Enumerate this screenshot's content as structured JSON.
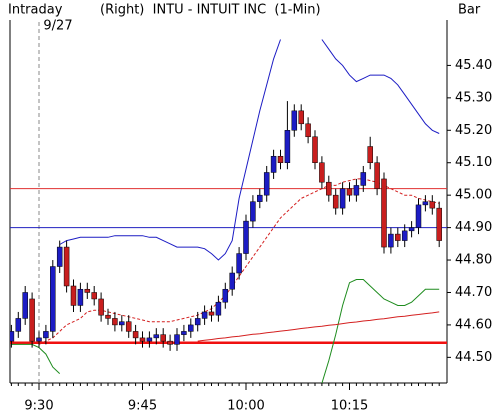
{
  "chart_data": {
    "type": "candlestick",
    "title": "(Right)  INTU - INTUIT INC  (1-Min)",
    "left_label": "Intraday",
    "date_label": "9/27",
    "right_label": "Bar",
    "categories": [
      null,
      null,
      null,
      null,
      "9:30",
      null,
      null,
      null,
      null,
      null,
      null,
      null,
      null,
      null,
      null,
      null,
      null,
      null,
      null,
      "9:45",
      null,
      null,
      null,
      null,
      null,
      null,
      null,
      null,
      null,
      null,
      null,
      null,
      null,
      null,
      "10:00",
      null,
      null,
      null,
      null,
      null,
      null,
      null,
      null,
      null,
      null,
      null,
      null,
      null,
      null,
      "10:15",
      null,
      null,
      null,
      null,
      null,
      null,
      null,
      null,
      null,
      null,
      null,
      null,
      null
    ],
    "open": [
      44.55,
      44.58,
      44.62,
      44.68,
      44.55,
      44.56,
      44.58,
      44.78,
      44.84,
      44.72,
      44.66,
      44.71,
      44.7,
      44.68,
      44.63,
      44.62,
      44.6,
      44.61,
      44.58,
      44.56,
      44.55,
      44.56,
      44.57,
      44.55,
      44.54,
      44.57,
      44.58,
      44.6,
      44.62,
      44.64,
      44.63,
      44.67,
      44.71,
      44.76,
      44.82,
      44.92,
      44.98,
      45.0,
      45.07,
      45.12,
      45.1,
      45.2,
      45.26,
      45.22,
      45.18,
      45.1,
      45.04,
      45.0,
      44.96,
      45.02,
      45.0,
      45.03,
      45.15,
      45.1,
      45.05,
      44.84,
      44.88,
      44.86,
      44.89,
      44.9,
      44.97,
      44.98,
      44.96
    ],
    "high": [
      44.6,
      44.64,
      44.72,
      44.7,
      44.58,
      44.6,
      44.8,
      44.86,
      44.86,
      44.74,
      44.73,
      44.73,
      44.72,
      44.7,
      44.65,
      44.64,
      44.63,
      44.63,
      44.6,
      44.58,
      44.58,
      44.59,
      44.59,
      44.57,
      44.59,
      44.6,
      44.62,
      44.64,
      44.66,
      44.66,
      44.69,
      44.73,
      44.78,
      44.84,
      44.94,
      45.0,
      45.02,
      45.09,
      45.14,
      45.14,
      45.29,
      45.28,
      45.28,
      45.24,
      45.2,
      45.12,
      45.06,
      45.02,
      45.04,
      45.04,
      45.05,
      45.09,
      45.18,
      45.12,
      45.07,
      44.9,
      44.9,
      44.91,
      44.92,
      44.99,
      45.0,
      45.0,
      44.98
    ],
    "low": [
      44.53,
      44.56,
      44.6,
      44.53,
      44.53,
      44.54,
      44.56,
      44.76,
      44.7,
      44.64,
      44.64,
      44.68,
      44.66,
      44.61,
      44.6,
      44.58,
      44.58,
      44.56,
      44.54,
      44.53,
      44.53,
      44.54,
      44.53,
      44.52,
      44.52,
      44.55,
      44.56,
      44.58,
      44.6,
      44.61,
      44.61,
      44.65,
      44.69,
      44.74,
      44.8,
      44.9,
      44.96,
      44.98,
      45.05,
      45.08,
      45.08,
      45.18,
      45.2,
      45.16,
      45.08,
      45.02,
      44.98,
      44.94,
      44.94,
      44.98,
      44.98,
      45.01,
      45.08,
      45.0,
      44.82,
      44.82,
      44.84,
      44.84,
      44.87,
      44.88,
      44.95,
      44.94,
      44.84
    ],
    "close": [
      44.58,
      44.62,
      44.7,
      44.55,
      44.56,
      44.58,
      44.78,
      44.84,
      44.72,
      44.66,
      44.71,
      44.7,
      44.68,
      44.63,
      44.62,
      44.6,
      44.61,
      44.58,
      44.56,
      44.55,
      44.56,
      44.57,
      44.55,
      44.54,
      44.57,
      44.58,
      44.6,
      44.62,
      44.64,
      44.63,
      44.67,
      44.71,
      44.76,
      44.82,
      44.92,
      44.98,
      45.0,
      45.07,
      45.12,
      45.1,
      45.2,
      45.26,
      45.22,
      45.18,
      45.1,
      45.04,
      45.0,
      44.96,
      45.02,
      45.0,
      45.03,
      45.07,
      45.1,
      45.02,
      44.84,
      44.88,
      44.86,
      44.89,
      44.9,
      44.97,
      44.98,
      44.96,
      44.86
    ],
    "up_color": "#1c1cc4",
    "down_color": "#c81e1e",
    "overlays": [
      {
        "color": "#1c1cc4",
        "width": 1,
        "dash": false,
        "values": [
          null,
          null,
          null,
          null,
          null,
          null,
          null,
          44.848,
          44.86,
          44.865,
          44.87,
          44.87,
          44.87,
          44.87,
          44.87,
          44.875,
          44.875,
          44.875,
          44.875,
          44.875,
          44.87,
          44.87,
          44.86,
          44.85,
          44.84,
          44.84,
          44.84,
          44.84,
          44.835,
          44.82,
          44.8,
          44.82,
          44.86,
          44.99,
          45.08,
          45.17,
          45.26,
          45.34,
          45.42,
          45.48,
          null,
          null,
          null,
          null,
          null,
          45.48,
          45.45,
          45.42,
          45.4,
          45.37,
          45.35,
          45.36,
          45.37,
          45.37,
          45.37,
          45.36,
          45.34,
          45.31,
          45.28,
          45.25,
          45.22,
          45.2,
          45.19
        ]
      },
      {
        "color": "#1e8c1e",
        "width": 1,
        "dash": false,
        "values": [
          44.54,
          44.54,
          44.54,
          44.54,
          44.53,
          44.51,
          44.47,
          44.45,
          null,
          null,
          null,
          null,
          null,
          null,
          null,
          null,
          null,
          null,
          null,
          null,
          null,
          null,
          null,
          null,
          null,
          null,
          null,
          null,
          null,
          null,
          null,
          null,
          null,
          null,
          null,
          null,
          null,
          null,
          null,
          null,
          null,
          null,
          null,
          null,
          null,
          44.42,
          44.49,
          44.57,
          44.66,
          44.73,
          44.74,
          44.74,
          44.72,
          44.7,
          44.68,
          44.67,
          44.66,
          44.66,
          44.67,
          44.69,
          44.71,
          44.71,
          44.71
        ]
      },
      {
        "color": "#d42020",
        "width": 1,
        "dash": true,
        "values": [
          null,
          null,
          null,
          null,
          44.54,
          44.55,
          44.56,
          44.58,
          44.6,
          44.61,
          44.62,
          44.64,
          44.645,
          44.645,
          44.64,
          44.635,
          44.63,
          44.625,
          44.62,
          44.615,
          44.61,
          44.61,
          44.61,
          44.61,
          44.615,
          44.62,
          44.625,
          44.63,
          44.64,
          44.65,
          44.67,
          44.69,
          44.72,
          44.75,
          44.78,
          44.81,
          44.84,
          44.87,
          44.9,
          44.93,
          44.95,
          44.97,
          44.99,
          45.0,
          45.01,
          45.02,
          45.03,
          45.03,
          45.04,
          45.045,
          45.05,
          45.05,
          45.045,
          45.04,
          45.03,
          45.02,
          45.01,
          45.0,
          45.0,
          44.99,
          44.985,
          44.98,
          44.975
        ]
      },
      {
        "color": "#d42020",
        "width": 1,
        "dash": false,
        "values": [
          null,
          null,
          null,
          null,
          null,
          null,
          null,
          null,
          null,
          null,
          null,
          null,
          null,
          null,
          null,
          null,
          null,
          null,
          null,
          null,
          null,
          null,
          null,
          null,
          null,
          null,
          null,
          44.55,
          44.553,
          44.555,
          44.558,
          44.56,
          44.563,
          44.565,
          44.568,
          44.571,
          44.573,
          44.576,
          44.578,
          44.581,
          44.583,
          44.586,
          44.589,
          44.591,
          44.594,
          44.596,
          44.599,
          44.601,
          44.604,
          44.607,
          44.609,
          44.612,
          44.614,
          44.617,
          44.619,
          44.622,
          44.625,
          44.627,
          44.63,
          44.632,
          44.635,
          44.637,
          44.64
        ]
      }
    ],
    "hlines": [
      {
        "value": 45.02,
        "color": "#e03030",
        "width": 1
      },
      {
        "value": 44.9,
        "color": "#2020c0",
        "width": 1
      },
      {
        "value": 44.545,
        "color": "#f01010",
        "width": 2.5
      }
    ],
    "ylim": [
      44.42,
      45.54
    ],
    "yticks": [
      {
        "value": 44.5,
        "label": "44.50"
      },
      {
        "value": 44.6,
        "label": "44.60"
      },
      {
        "value": 44.7,
        "label": "44.70"
      },
      {
        "value": 44.8,
        "label": "44.80"
      },
      {
        "value": 44.9,
        "label": "44.90"
      },
      {
        "value": 45.0,
        "label": "45.00"
      },
      {
        "value": 45.1,
        "label": "45.10"
      },
      {
        "value": 45.2,
        "label": "45.20"
      },
      {
        "value": 45.3,
        "label": "45.30"
      },
      {
        "value": 45.4,
        "label": "45.40"
      }
    ]
  }
}
